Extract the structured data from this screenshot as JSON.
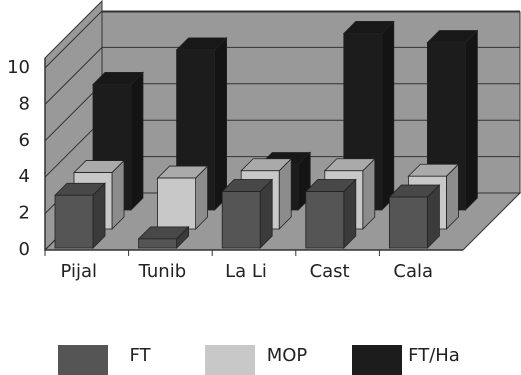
{
  "chart_data": {
    "type": "bar3d",
    "categories": [
      "Pijal",
      "Tunib",
      "La Li",
      "Cast",
      "Cala"
    ],
    "series": [
      {
        "name": "FT",
        "color": "#555555",
        "values": [
          2.9,
          0.5,
          3.1,
          3.1,
          2.8
        ]
      },
      {
        "name": "MOP",
        "color": "#c8c8c8",
        "values": [
          3.1,
          2.8,
          3.2,
          3.2,
          2.9
        ]
      },
      {
        "name": "FT/Ha",
        "color": "#1c1c1c",
        "values": [
          6.9,
          8.8,
          2.5,
          9.7,
          9.2
        ]
      }
    ],
    "ylim": [
      0,
      10
    ],
    "yticks": [
      0,
      2,
      4,
      6,
      8,
      10
    ],
    "grid": true
  }
}
